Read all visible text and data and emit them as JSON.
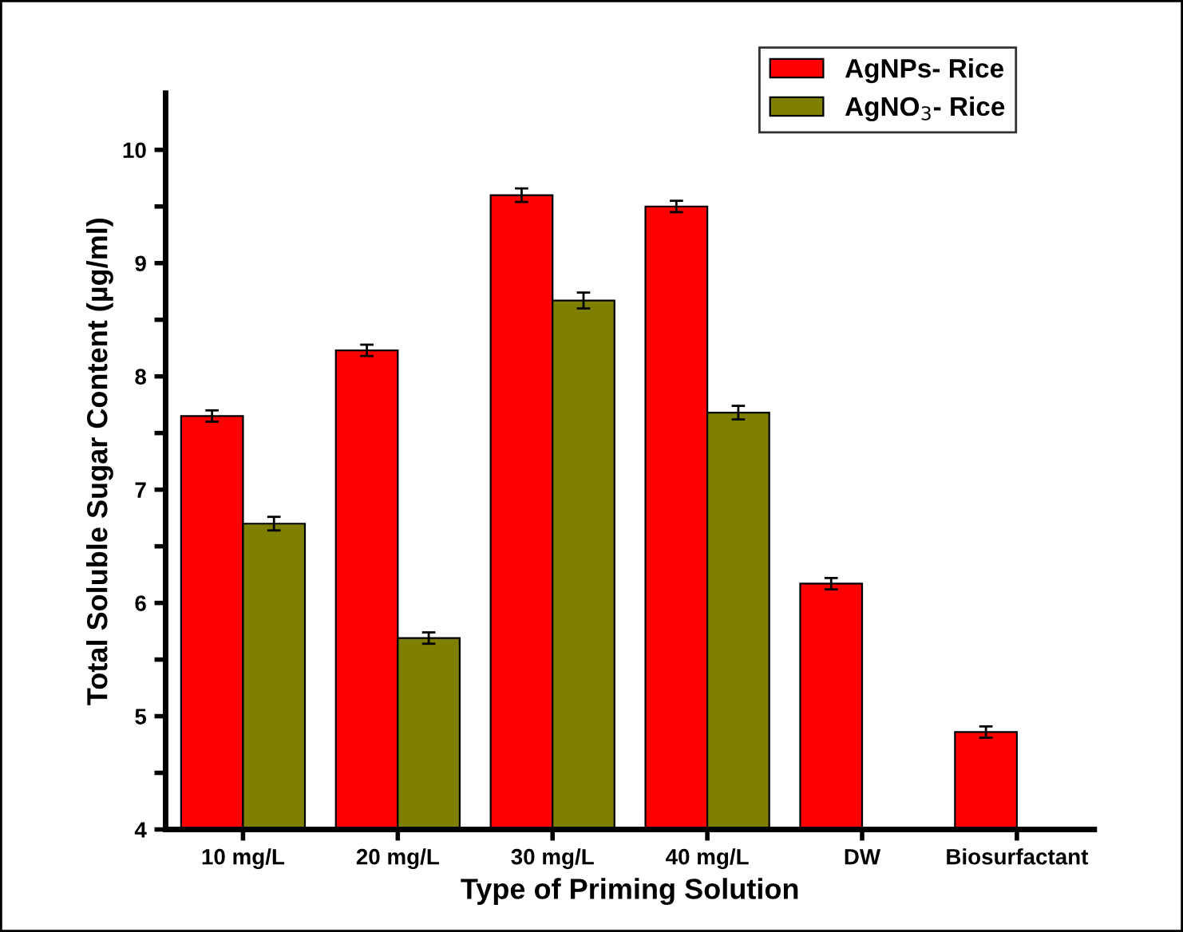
{
  "chart_data": {
    "type": "bar",
    "xlabel": "Type of Priming Solution",
    "ylabel": "Total Soluble Sugar Content (µg/ml)",
    "categories": [
      "10 mg/L",
      "20 mg/L",
      "30 mg/L",
      "40 mg/L",
      "DW",
      "Biosurfactant"
    ],
    "series": [
      {
        "name": "AgNPs- Rice",
        "color": "#ff0000",
        "values": [
          7.65,
          8.23,
          9.6,
          9.5,
          6.17,
          4.86
        ],
        "errors": [
          0.05,
          0.05,
          0.06,
          0.05,
          0.05,
          0.05
        ]
      },
      {
        "name": "AgNO$_{3}$- Rice",
        "color": "#808000",
        "values": [
          6.7,
          5.69,
          8.67,
          7.68,
          null,
          null
        ],
        "errors": [
          0.06,
          0.05,
          0.07,
          0.06,
          null,
          null
        ]
      }
    ],
    "ylim": [
      4,
      10.5
    ],
    "yticks": [
      4,
      {
        "value": 4.5,
        "label": null
      },
      5,
      {
        "value": 5.5,
        "label": null
      },
      6,
      {
        "value": 6.5,
        "label": null
      },
      7,
      {
        "value": 7.5,
        "label": null
      },
      8,
      {
        "value": 8.5,
        "label": null
      },
      9,
      {
        "value": 9.5,
        "label": null
      },
      10
    ],
    "grid": false,
    "legend": "top right"
  }
}
